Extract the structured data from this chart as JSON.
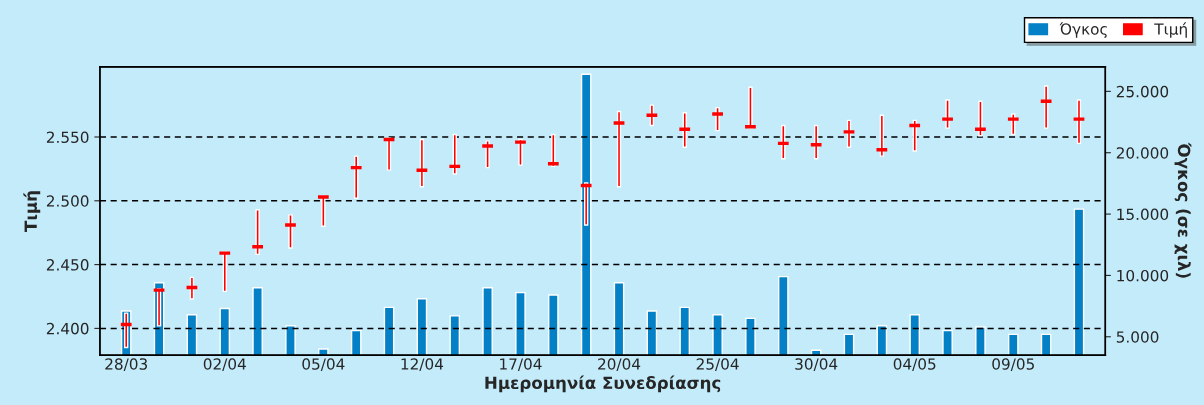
{
  "chart_data": {
    "type": "bar",
    "categories": [
      "28/03",
      null,
      null,
      "02/04",
      null,
      null,
      "05/04",
      null,
      null,
      "12/04",
      null,
      null,
      "17/04",
      null,
      null,
      "20/04",
      null,
      null,
      "25/04",
      null,
      null,
      "30/04",
      null,
      null,
      "04/05",
      null,
      null,
      "09/05",
      null,
      null
    ],
    "xlabel": "Ημερομηνία Συνεδρίασης",
    "ylabel": "Τιμή",
    "y2label": "Όγκος (σε χιλ)",
    "series": [
      {
        "name": "Όγκος",
        "axis": "y2",
        "color": "#0480c6",
        "values": [
          7100,
          9400,
          6800,
          7300,
          9000,
          5900,
          4000,
          5500,
          7400,
          8100,
          6700,
          9000,
          8600,
          8400,
          26400,
          9400,
          7100,
          7400,
          6800,
          6500,
          9900,
          3900,
          5200,
          5900,
          6800,
          5500,
          5800,
          5200,
          5200,
          15400
        ]
      },
      {
        "name": "Τιμή",
        "color": "#ff0000",
        "base": [
          2.385,
          2.402,
          2.423,
          2.429,
          2.458,
          2.463,
          2.48,
          2.502,
          2.524,
          2.511,
          2.521,
          2.526,
          2.528,
          2.527,
          2.481,
          2.511,
          2.559,
          2.542,
          2.555,
          2.557,
          2.533,
          2.533,
          2.542,
          2.535,
          2.539,
          2.557,
          2.551,
          2.552,
          2.557,
          2.545
        ],
        "values": [
          0.027,
          0.029,
          0.017,
          0.031,
          0.035,
          0.026,
          0.024,
          0.033,
          0.025,
          0.037,
          0.031,
          0.021,
          0.02,
          0.025,
          0.033,
          0.059,
          0.016,
          0.027,
          0.018,
          0.032,
          0.026,
          0.026,
          0.021,
          0.032,
          0.024,
          0.022,
          0.027,
          0.016,
          0.033,
          0.034
        ]
      },
      {
        "type": "scatter",
        "color": "#ff0000",
        "values": [
          2.403,
          2.43,
          2.432,
          2.459,
          2.464,
          2.481,
          2.503,
          2.526,
          2.548,
          2.524,
          2.527,
          2.543,
          2.546,
          2.529,
          2.512,
          2.561,
          2.567,
          2.556,
          2.568,
          2.558,
          2.545,
          2.544,
          2.554,
          2.54,
          2.559,
          2.564,
          2.556,
          2.564,
          2.578,
          2.564
        ]
      }
    ],
    "ylim": [
      2.379,
      2.605
    ],
    "yticks": [
      {
        "value": 2.4,
        "label": "2.400"
      },
      {
        "value": 2.45,
        "label": "2.450"
      },
      {
        "value": 2.5,
        "label": "2.500"
      },
      {
        "value": 2.55,
        "label": "2.550"
      }
    ],
    "y2lim": [
      3500,
      27000
    ],
    "y2ticks": [
      {
        "value": 5000,
        "label": "5.000"
      },
      {
        "value": 10000,
        "label": "10.000"
      },
      {
        "value": 15000,
        "label": "15.000"
      },
      {
        "value": 20000,
        "label": "20.000"
      },
      {
        "value": 25000,
        "label": "25.000"
      }
    ],
    "grid": "y",
    "legend": "top right"
  }
}
